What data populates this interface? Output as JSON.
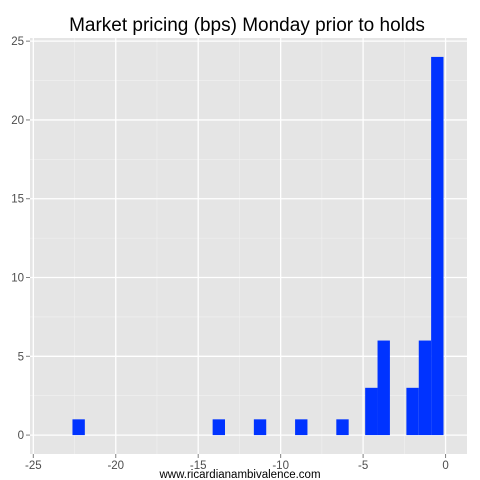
{
  "chart_data": {
    "type": "bar",
    "title": "Market pricing (bps) Monday prior to holds",
    "xlabel": "www.ricardianambivalence.com",
    "ylabel": "",
    "xlim": [
      -25.2,
      1.3
    ],
    "ylim": [
      -1.2,
      25.2
    ],
    "x_ticks": [
      -25,
      -20,
      -15,
      -10,
      -5,
      0
    ],
    "y_ticks": [
      0,
      5,
      10,
      15,
      20,
      25
    ],
    "bin_width": 0.75,
    "bars": [
      {
        "x": -22.25,
        "count": 1
      },
      {
        "x": -13.75,
        "count": 1
      },
      {
        "x": -11.25,
        "count": 1
      },
      {
        "x": -8.75,
        "count": 1
      },
      {
        "x": -6.25,
        "count": 1
      },
      {
        "x": -4.5,
        "count": 3
      },
      {
        "x": -3.75,
        "count": 6
      },
      {
        "x": -2.0,
        "count": 3
      },
      {
        "x": -1.25,
        "count": 6
      },
      {
        "x": -0.5,
        "count": 24
      }
    ],
    "bar_color": "#0033ff",
    "panel_color": "#e5e5e5",
    "grid": true,
    "legend": "none"
  }
}
